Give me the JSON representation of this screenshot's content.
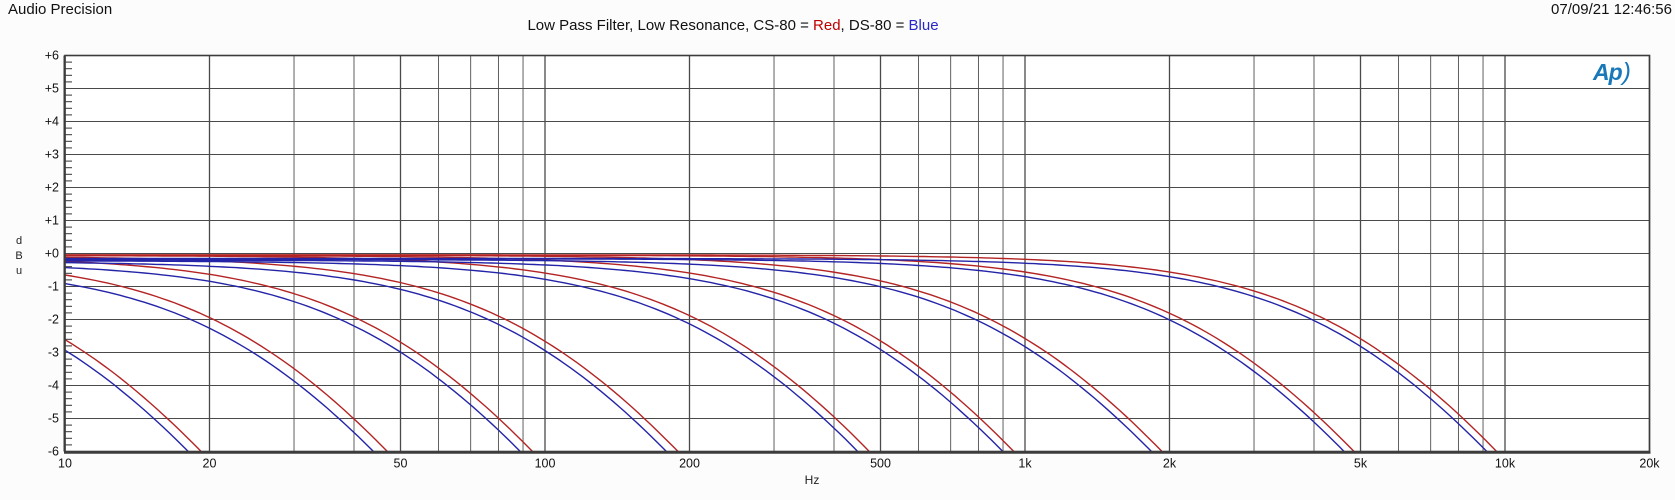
{
  "header": {
    "app_name": "Audio Precision",
    "timestamp": "07/09/21 12:46:56"
  },
  "title": {
    "prefix": "Low Pass Filter, Low Resonance, CS-80 = ",
    "red_label": "Red",
    "separator": ", DS-80 = ",
    "blue_label": "Blue",
    "red_color": "#c00000",
    "blue_color": "#2828c8"
  },
  "logo": {
    "text": "Ap",
    "paren": ")",
    "color": "#1878b8"
  },
  "chart_data": {
    "type": "line",
    "title": "Low Pass Filter, Low Resonance, CS-80 = Red, DS-80 = Blue",
    "legend": {
      "red_series": "CS-80",
      "blue_series": "DS-80"
    },
    "colors": {
      "red": "#b42424",
      "blue": "#2424a8",
      "grid_major": "#4a4a4a",
      "grid_minor": "#606060",
      "border": "#3c3c3c"
    },
    "x_axis": {
      "label": "Hz",
      "scale": "log",
      "min_hz": 10,
      "max_hz": 20000,
      "major_ticks": [
        {
          "f": 10,
          "label": "10"
        },
        {
          "f": 20,
          "label": "20"
        },
        {
          "f": 50,
          "label": "50"
        },
        {
          "f": 100,
          "label": "100"
        },
        {
          "f": 200,
          "label": "200"
        },
        {
          "f": 500,
          "label": "500"
        },
        {
          "f": 1000,
          "label": "1k"
        },
        {
          "f": 2000,
          "label": "2k"
        },
        {
          "f": 5000,
          "label": "5k"
        },
        {
          "f": 10000,
          "label": "10k"
        },
        {
          "f": 20000,
          "label": "20k"
        }
      ],
      "minor_ticks": [
        30,
        40,
        60,
        70,
        80,
        90,
        300,
        400,
        600,
        700,
        800,
        900,
        3000,
        4000,
        6000,
        7000,
        8000,
        9000
      ]
    },
    "y_axis": {
      "label": "dBu",
      "label_stacked": [
        "d",
        "B",
        "u"
      ],
      "min_db": -6,
      "max_db": 6,
      "tick_step_db": 1,
      "minor_tick_step_db": 0.2,
      "tick_labels": [
        "+6",
        "+5",
        "+4",
        "+3",
        "+2",
        "+1",
        "+0",
        "-1",
        "-2",
        "-3",
        "-4",
        "-5",
        "-6"
      ]
    },
    "series_model": "gain_db = offset_db - 10*log10(1 + (f/fc_hz)^2); blue trace uses fc_hz*blue_fc_factor",
    "filters": [
      {
        "name": "lpf-cutoff-20hz",
        "fc_hz": 11.3,
        "minus6db_hz": 19.6,
        "red_offset_db": -0.1,
        "blue_offset_db": -0.3,
        "blue_fc_factor": 0.97
      },
      {
        "name": "lpf-cutoff-50hz",
        "fc_hz": 27.7,
        "minus6db_hz": 48,
        "red_offset_db": -0.12,
        "blue_offset_db": -0.35,
        "blue_fc_factor": 0.97
      },
      {
        "name": "lpf-cutoff-100hz",
        "fc_hz": 55.4,
        "minus6db_hz": 96,
        "red_offset_db": -0.1,
        "blue_offset_db": -0.28,
        "blue_fc_factor": 0.97
      },
      {
        "name": "lpf-cutoff-200hz",
        "fc_hz": 111,
        "minus6db_hz": 192,
        "red_offset_db": -0.08,
        "blue_offset_db": -0.24,
        "blue_fc_factor": 0.97
      },
      {
        "name": "lpf-cutoff-500hz",
        "fc_hz": 277,
        "minus6db_hz": 480,
        "red_offset_db": -0.06,
        "blue_offset_db": -0.22,
        "blue_fc_factor": 0.97
      },
      {
        "name": "lpf-cutoff-1khz",
        "fc_hz": 554,
        "minus6db_hz": 960,
        "red_offset_db": -0.06,
        "blue_offset_db": -0.2,
        "blue_fc_factor": 0.97
      },
      {
        "name": "lpf-cutoff-2khz",
        "fc_hz": 1126,
        "minus6db_hz": 1950,
        "red_offset_db": -0.05,
        "blue_offset_db": -0.18,
        "blue_fc_factor": 0.97
      },
      {
        "name": "lpf-cutoff-5khz",
        "fc_hz": 2829,
        "minus6db_hz": 4900,
        "red_offset_db": -0.05,
        "blue_offset_db": -0.16,
        "blue_fc_factor": 0.97
      },
      {
        "name": "lpf-cutoff-10khz",
        "fc_hz": 5600,
        "minus6db_hz": 9700,
        "red_offset_db": -0.04,
        "blue_offset_db": -0.15,
        "blue_fc_factor": 0.97
      }
    ]
  }
}
